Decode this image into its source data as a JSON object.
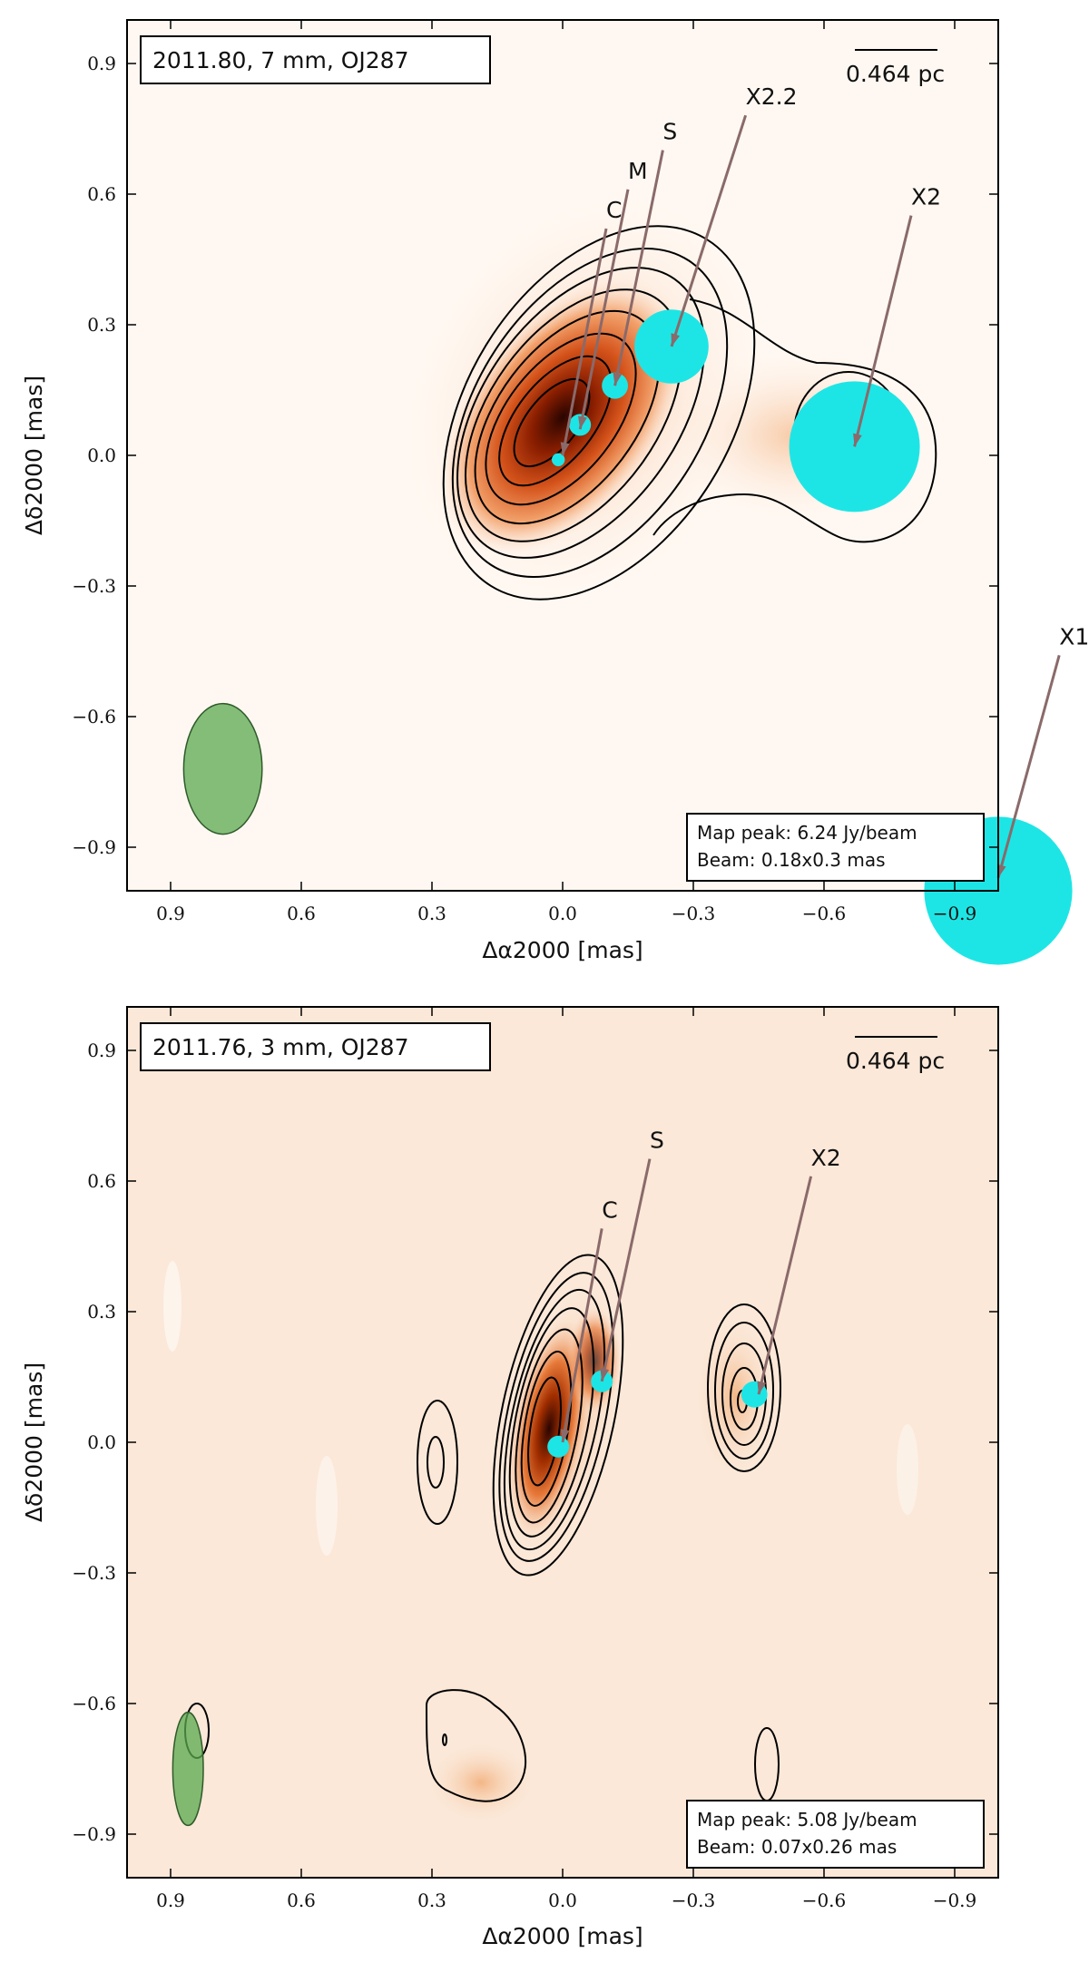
{
  "chart_data": [
    {
      "type": "heatmap",
      "epoch_label": "2011.80,  7 mm,  OJ287",
      "scale_bar": "0.464 pc",
      "xlabel": "Δα2000 [mas]",
      "ylabel": "Δδ2000 [mas]",
      "xlim": [
        1.0,
        -1.0
      ],
      "ylim": [
        -1.0,
        1.0
      ],
      "xticks": [
        0.9,
        0.6,
        0.3,
        0.0,
        -0.3,
        -0.6,
        -0.9
      ],
      "yticks": [
        0.9,
        0.6,
        0.3,
        0.0,
        -0.3,
        -0.6,
        -0.9
      ],
      "xtick_labels": [
        "0.9",
        "0.6",
        "0.3",
        "0.0",
        "−0.3",
        "−0.6",
        "−0.9"
      ],
      "ytick_labels": [
        "0.9",
        "0.6",
        "0.3",
        "0.0",
        "−0.3",
        "−0.6",
        "−0.9"
      ],
      "map_peak": "Map peak: 6.24 Jy/beam",
      "beam": "Beam: 0.18x0.3 mas",
      "beam_ellipse": {
        "x": 0.78,
        "y": -0.72,
        "major": 0.3,
        "minor": 0.18,
        "pa": 0,
        "color": "#5aaa4f"
      },
      "components": [
        {
          "name": "",
          "x": 0.01,
          "y": -0.01,
          "size": 0.03
        },
        {
          "name": "C",
          "x": -0.04,
          "y": 0.07,
          "size": 0.05
        },
        {
          "name": "M",
          "x": -0.12,
          "y": 0.16,
          "size": 0.06
        },
        {
          "name": "S",
          "x": -0.25,
          "y": 0.25,
          "size": 0.17
        },
        {
          "name": "X2",
          "x": -0.67,
          "y": 0.02,
          "size": 0.3
        },
        {
          "name": "X1",
          "x": -1.0,
          "y": -1.0,
          "size": 0.34
        }
      ],
      "labels": [
        {
          "text": "C",
          "lx": -0.1,
          "ly": 0.55,
          "tx": 0.0,
          "ty": 0.0
        },
        {
          "text": "M",
          "lx": -0.15,
          "ly": 0.64,
          "tx": -0.04,
          "ty": 0.06
        },
        {
          "text": "S",
          "lx": -0.23,
          "ly": 0.73,
          "tx": -0.12,
          "ty": 0.16
        },
        {
          "text": "X2.2",
          "lx": -0.42,
          "ly": 0.81,
          "tx": -0.25,
          "ty": 0.25
        },
        {
          "text": "X2",
          "lx": -0.8,
          "ly": 0.58,
          "tx": -0.67,
          "ty": 0.02
        },
        {
          "text": "X1",
          "lx": -1.14,
          "ly": -0.43,
          "tx": -1.0,
          "ty": -0.97
        }
      ],
      "marker_color": "#1ee5e5",
      "contour_levels": [
        0.04,
        0.08,
        0.16,
        0.27,
        0.39,
        0.52,
        0.65,
        0.8
      ]
    },
    {
      "type": "heatmap",
      "epoch_label": "2011.76,  3 mm,  OJ287",
      "scale_bar": "0.464 pc",
      "xlabel": "Δα2000 [mas]",
      "ylabel": "Δδ2000 [mas]",
      "xlim": [
        1.0,
        -1.0
      ],
      "ylim": [
        -1.0,
        1.0
      ],
      "xticks": [
        0.9,
        0.6,
        0.3,
        0.0,
        -0.3,
        -0.6,
        -0.9
      ],
      "yticks": [
        0.9,
        0.6,
        0.3,
        0.0,
        -0.3,
        -0.6,
        -0.9
      ],
      "xtick_labels": [
        "0.9",
        "0.6",
        "0.3",
        "0.0",
        "−0.3",
        "−0.6",
        "−0.9"
      ],
      "ytick_labels": [
        "0.9",
        "0.6",
        "0.3",
        "0.0",
        "−0.3",
        "−0.6",
        "−0.9"
      ],
      "map_peak": "Map peak: 5.08 Jy/beam",
      "beam": "Beam: 0.07x0.26 mas",
      "beam_ellipse": {
        "x": 0.86,
        "y": -0.75,
        "major": 0.26,
        "minor": 0.07,
        "pa": 0,
        "color": "#5aaa4f"
      },
      "components": [
        {
          "name": "C",
          "x": 0.01,
          "y": -0.01,
          "size": 0.05
        },
        {
          "name": "S",
          "x": -0.09,
          "y": 0.14,
          "size": 0.05
        },
        {
          "name": "X2",
          "x": -0.44,
          "y": 0.11,
          "size": 0.06
        }
      ],
      "labels": [
        {
          "text": "C",
          "lx": -0.09,
          "ly": 0.52,
          "tx": 0.0,
          "ty": 0.0
        },
        {
          "text": "S",
          "lx": -0.2,
          "ly": 0.68,
          "tx": -0.09,
          "ty": 0.14
        },
        {
          "text": "X2",
          "lx": -0.57,
          "ly": 0.64,
          "tx": -0.45,
          "ty": 0.11
        }
      ],
      "marker_color": "#1ee5e5",
      "contour_levels": [
        0.04,
        0.08,
        0.16,
        0.27,
        0.39,
        0.52,
        0.65,
        0.8
      ]
    }
  ]
}
